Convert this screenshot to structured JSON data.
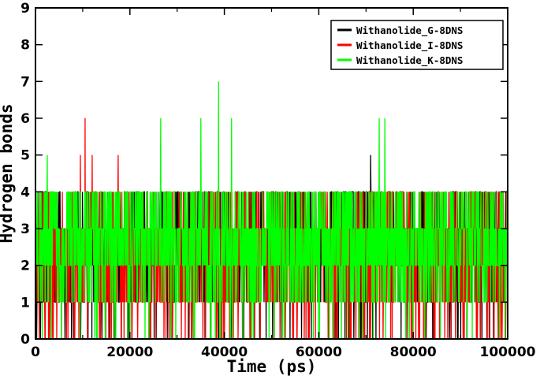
{
  "chart_data": {
    "type": "line",
    "title": "",
    "xlabel": "Time (ps)",
    "ylabel": "Hydrogen bonds",
    "xlim": [
      0,
      100000
    ],
    "ylim": [
      0,
      9
    ],
    "xticks": [
      0,
      20000,
      40000,
      60000,
      80000,
      100000
    ],
    "yticks": [
      0,
      1,
      2,
      3,
      4,
      5,
      6,
      7,
      8,
      9
    ],
    "grid": false,
    "legend_position": "top-right",
    "series": [
      {
        "name": "Withanolide_G-8DNS",
        "color": "#000000",
        "peaks": [
          [
            4000,
            4
          ],
          [
            71000,
            5
          ],
          [
            86000,
            4
          ]
        ],
        "dips": [
          [
            5000,
            1
          ],
          [
            24000,
            0
          ],
          [
            32500,
            0
          ],
          [
            70000,
            1
          ],
          [
            88000,
            0
          ],
          [
            97000,
            0
          ]
        ]
      },
      {
        "name": "Withanolide_I-8DNS",
        "color": "#ff0000",
        "peaks": [
          [
            9500,
            5
          ],
          [
            10500,
            6
          ],
          [
            12000,
            5
          ],
          [
            17500,
            5
          ]
        ],
        "dips": [
          [
            3000,
            0
          ],
          [
            4500,
            0
          ],
          [
            10000,
            1
          ],
          [
            13500,
            0
          ],
          [
            33000,
            0
          ],
          [
            36000,
            0
          ],
          [
            40000,
            0
          ],
          [
            54500,
            0
          ]
        ]
      },
      {
        "name": "Withanolide_K-8DNS",
        "color": "#00ff00",
        "peaks": [
          [
            2500,
            5
          ],
          [
            26500,
            6
          ],
          [
            35000,
            6
          ],
          [
            38800,
            7
          ],
          [
            41500,
            6
          ],
          [
            72800,
            6
          ],
          [
            74000,
            6
          ]
        ],
        "dips": [
          [
            5000,
            1
          ],
          [
            20000,
            0
          ],
          [
            30000,
            1
          ],
          [
            60000,
            0
          ],
          [
            80000,
            0
          ],
          [
            95000,
            1
          ]
        ]
      }
    ]
  }
}
